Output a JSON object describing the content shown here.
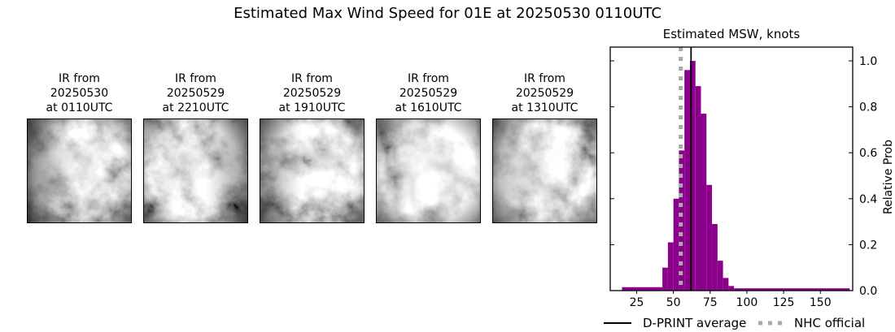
{
  "figure": {
    "title": "Estimated Max Wind Speed for 01E at 20250530 0110UTC"
  },
  "satellite_panels": [
    {
      "caption": [
        "IR from",
        "20250530",
        "at 0110UTC"
      ]
    },
    {
      "caption": [
        "IR from",
        "20250529",
        "at 2210UTC"
      ]
    },
    {
      "caption": [
        "IR from",
        "20250529",
        "at 1910UTC"
      ]
    },
    {
      "caption": [
        "IR from",
        "20250529",
        "at 1610UTC"
      ]
    },
    {
      "caption": [
        "IR from",
        "20250529",
        "at 1310UTC"
      ]
    }
  ],
  "chart_data": {
    "type": "bar",
    "title": "Estimated MSW, knots",
    "ylabel": "Relative Prob",
    "xlim": [
      7,
      172
    ],
    "ylim": [
      0,
      1.06
    ],
    "x_ticks": [
      25,
      50,
      75,
      100,
      125,
      150
    ],
    "y_ticks": [
      0.0,
      0.2,
      0.4,
      0.6,
      0.8,
      1.0
    ],
    "bar_color": "#8B008B",
    "bins": [
      {
        "x0": 15.0,
        "x1": 42.5,
        "h": 0.015
      },
      {
        "x0": 42.5,
        "x1": 46.25,
        "h": 0.1
      },
      {
        "x0": 46.25,
        "x1": 50.0,
        "h": 0.21
      },
      {
        "x0": 50.0,
        "x1": 53.75,
        "h": 0.4
      },
      {
        "x0": 53.75,
        "x1": 57.5,
        "h": 0.61
      },
      {
        "x0": 57.5,
        "x1": 61.25,
        "h": 0.96
      },
      {
        "x0": 61.25,
        "x1": 65.0,
        "h": 1.0
      },
      {
        "x0": 65.0,
        "x1": 68.75,
        "h": 0.89
      },
      {
        "x0": 68.75,
        "x1": 72.5,
        "h": 0.77
      },
      {
        "x0": 72.5,
        "x1": 76.25,
        "h": 0.46
      },
      {
        "x0": 76.25,
        "x1": 80.0,
        "h": 0.29
      },
      {
        "x0": 80.0,
        "x1": 83.75,
        "h": 0.13
      },
      {
        "x0": 83.75,
        "x1": 87.5,
        "h": 0.055
      },
      {
        "x0": 87.5,
        "x1": 91.25,
        "h": 0.02
      },
      {
        "x0": 91.25,
        "x1": 170.0,
        "h": 0.01
      }
    ],
    "vlines": [
      {
        "label": "D-PRINT average",
        "x": 62,
        "style": "solid",
        "color": "#000000"
      },
      {
        "label": "NHC official",
        "x": 55,
        "style": "dotted",
        "color": "#aaaaaa"
      }
    ],
    "legend": [
      {
        "label": "D-PRINT average",
        "style": "solid",
        "color": "#000000"
      },
      {
        "label": "NHC official",
        "style": "dotted",
        "color": "#aaaaaa"
      }
    ]
  }
}
